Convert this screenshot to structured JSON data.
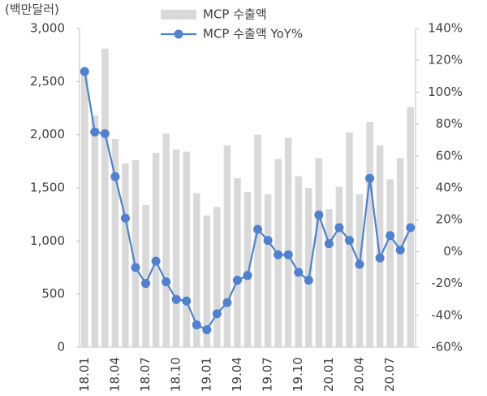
{
  "chart_data": {
    "type": "bar_line",
    "y_unit_label": "(백만달러)",
    "categories": [
      "18.01",
      null,
      null,
      "18.04",
      null,
      null,
      "18.07",
      null,
      null,
      "18.10",
      null,
      null,
      "19.01",
      null,
      null,
      "19.04",
      null,
      null,
      "19.07",
      null,
      null,
      "19.10",
      null,
      null,
      "20.01",
      null,
      null,
      "20.04",
      null,
      null,
      "20.07",
      null,
      null
    ],
    "series": [
      {
        "name": "MCP 수출액",
        "color": "#d9d9d9",
        "values": [
          2590,
          2180,
          2810,
          1960,
          1730,
          1760,
          1340,
          1830,
          2010,
          1860,
          1840,
          1450,
          1240,
          1320,
          1900,
          1590,
          1460,
          2000,
          1440,
          1770,
          1970,
          1610,
          1500,
          1780,
          1300,
          1510,
          2020,
          1440,
          2120,
          1900,
          1580,
          1780,
          2260
        ]
      },
      {
        "name": "MCP 수출액 YoY%",
        "color": "#4f81d0",
        "axis": "y2",
        "values": [
          113,
          75,
          74,
          47,
          21,
          -10,
          -20,
          -6,
          -19,
          -30,
          -31,
          -46,
          -49,
          -39,
          -32,
          -18,
          -15,
          14,
          7,
          -2,
          -2,
          -13,
          -18,
          23,
          5,
          15,
          7,
          -8,
          46,
          -4,
          10,
          1,
          15
        ]
      }
    ],
    "ylim": [
      0,
      3000
    ],
    "yticks": [
      0,
      500,
      {
        "value": 1000,
        "label": "1,000"
      },
      {
        "value": 1500,
        "label": "1,500"
      },
      {
        "value": 2000,
        "label": "2,000"
      },
      {
        "value": 2500,
        "label": "2,500"
      },
      {
        "value": 3000,
        "label": "3,000"
      }
    ],
    "y2lim": [
      -60,
      140
    ],
    "y2ticks": [
      {
        "value": -60,
        "label": "-60%"
      },
      {
        "value": -40,
        "label": "-40%"
      },
      {
        "value": -20,
        "label": "-20%"
      },
      {
        "value": 0,
        "label": "0%"
      },
      {
        "value": 20,
        "label": "20%"
      },
      {
        "value": 40,
        "label": "40%"
      },
      {
        "value": 60,
        "label": "60%"
      },
      {
        "value": 80,
        "label": "80%"
      },
      {
        "value": 100,
        "label": "100%"
      },
      {
        "value": 120,
        "label": "120%"
      },
      {
        "value": 140,
        "label": "140%"
      }
    ]
  }
}
